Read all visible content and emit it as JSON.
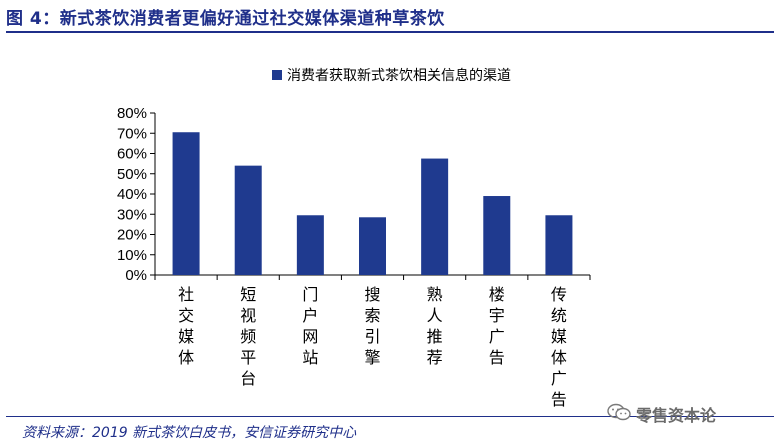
{
  "figure": {
    "title": "图 4：新式茶饮消费者更偏好通过社交媒体渠道种草茶饮",
    "source": "资料来源：2019 新式茶饮白皮书，安信证券研究中心",
    "watermark": "零售资本论"
  },
  "colors": {
    "bar": "#1f3a8f",
    "title": "#1f2f8a",
    "axis": "#000000"
  },
  "icons": {
    "watermark": "wechat-icon"
  },
  "chart_data": {
    "type": "bar",
    "title": "",
    "xlabel": "",
    "ylabel": "",
    "legend": {
      "position": "top",
      "entries": [
        "消费者获取新式茶饮相关信息的渠道"
      ]
    },
    "categories": [
      "社交媒体",
      "短视频平台",
      "门户网站",
      "搜索引擎",
      "熟人推荐",
      "楼宇广告",
      "传统媒体广告"
    ],
    "series": [
      {
        "name": "消费者获取新式茶饮相关信息的渠道",
        "values": [
          70.5,
          54,
          29.5,
          28.5,
          57.5,
          39,
          29.5
        ]
      }
    ],
    "ylim": [
      0,
      80
    ],
    "yticks": [
      "0%",
      "10%",
      "20%",
      "30%",
      "40%",
      "50%",
      "60%",
      "70%",
      "80%"
    ],
    "grid": false
  }
}
